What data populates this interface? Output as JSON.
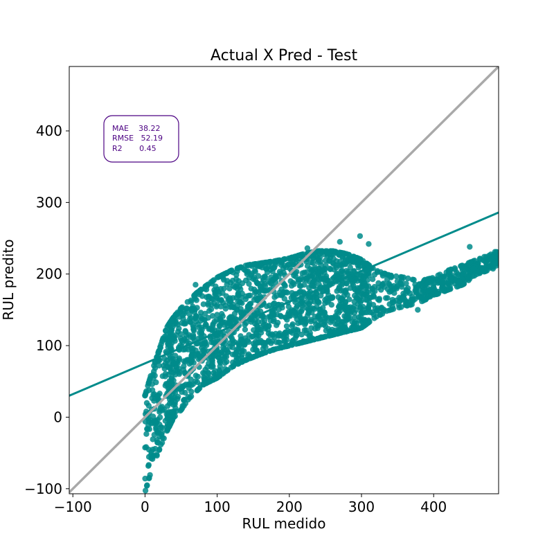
{
  "chart_data": {
    "type": "scatter",
    "title": "Actual X Pred - Test",
    "xlabel": "RUL medido",
    "ylabel": "RUL predito",
    "xlim": [
      -105,
      490
    ],
    "ylim": [
      -107,
      490
    ],
    "xticks": [
      -100,
      0,
      100,
      200,
      300,
      400
    ],
    "yticks": [
      -100,
      0,
      100,
      200,
      300,
      400
    ],
    "xtick_labels": [
      "−100",
      "0",
      "100",
      "200",
      "300",
      "400"
    ],
    "ytick_labels": [
      "−100",
      "0",
      "100",
      "200",
      "300",
      "400"
    ],
    "grid": false,
    "colors": {
      "points": "#008B8B",
      "regression_line": "#008B8B",
      "identity_line": "#A9A9A9",
      "metrics_text": "#4B0082",
      "metrics_border": "#4B0082"
    },
    "metrics_box": {
      "lines": [
        "MAE    38.22",
        "RMSE   52.19",
        "R2       0.45"
      ]
    },
    "regression_line": {
      "x": [
        -105,
        490
      ],
      "y": [
        30,
        286
      ]
    },
    "identity_line": {
      "x": [
        -105,
        490
      ],
      "y": [
        -105,
        490
      ]
    },
    "cloud_profile": [
      {
        "x": 0,
        "lo": -105,
        "hi": 30
      },
      {
        "x": 10,
        "lo": -70,
        "hi": 65
      },
      {
        "x": 20,
        "lo": -45,
        "hi": 95
      },
      {
        "x": 30,
        "lo": -20,
        "hi": 125
      },
      {
        "x": 40,
        "lo": 0,
        "hi": 140
      },
      {
        "x": 50,
        "lo": 10,
        "hi": 152
      },
      {
        "x": 60,
        "lo": 25,
        "hi": 162
      },
      {
        "x": 70,
        "lo": 35,
        "hi": 172
      },
      {
        "x": 80,
        "lo": 45,
        "hi": 180
      },
      {
        "x": 100,
        "lo": 55,
        "hi": 195
      },
      {
        "x": 120,
        "lo": 70,
        "hi": 205
      },
      {
        "x": 140,
        "lo": 80,
        "hi": 212
      },
      {
        "x": 160,
        "lo": 88,
        "hi": 215
      },
      {
        "x": 180,
        "lo": 95,
        "hi": 218
      },
      {
        "x": 200,
        "lo": 100,
        "hi": 222
      },
      {
        "x": 220,
        "lo": 105,
        "hi": 228
      },
      {
        "x": 240,
        "lo": 110,
        "hi": 232
      },
      {
        "x": 260,
        "lo": 115,
        "hi": 232
      },
      {
        "x": 280,
        "lo": 120,
        "hi": 228
      },
      {
        "x": 300,
        "lo": 125,
        "hi": 220
      },
      {
        "x": 320,
        "lo": 140,
        "hi": 205
      },
      {
        "x": 340,
        "lo": 150,
        "hi": 198
      },
      {
        "x": 360,
        "lo": 155,
        "hi": 195
      },
      {
        "x": 380,
        "lo": 160,
        "hi": 190
      },
      {
        "x": 400,
        "lo": 170,
        "hi": 195
      },
      {
        "x": 420,
        "lo": 178,
        "hi": 205
      },
      {
        "x": 440,
        "lo": 185,
        "hi": 212
      },
      {
        "x": 460,
        "lo": 200,
        "hi": 220
      },
      {
        "x": 490,
        "lo": 210,
        "hi": 232
      }
    ],
    "outliers": [
      {
        "x": 298,
        "y": 253
      },
      {
        "x": 225,
        "y": 236
      },
      {
        "x": 450,
        "y": 238
      },
      {
        "x": 270,
        "y": 245
      },
      {
        "x": 310,
        "y": 242
      },
      {
        "x": 378,
        "y": 150
      },
      {
        "x": 70,
        "y": 185
      },
      {
        "x": 455,
        "y": 208
      },
      {
        "x": 485,
        "y": 231
      }
    ]
  }
}
